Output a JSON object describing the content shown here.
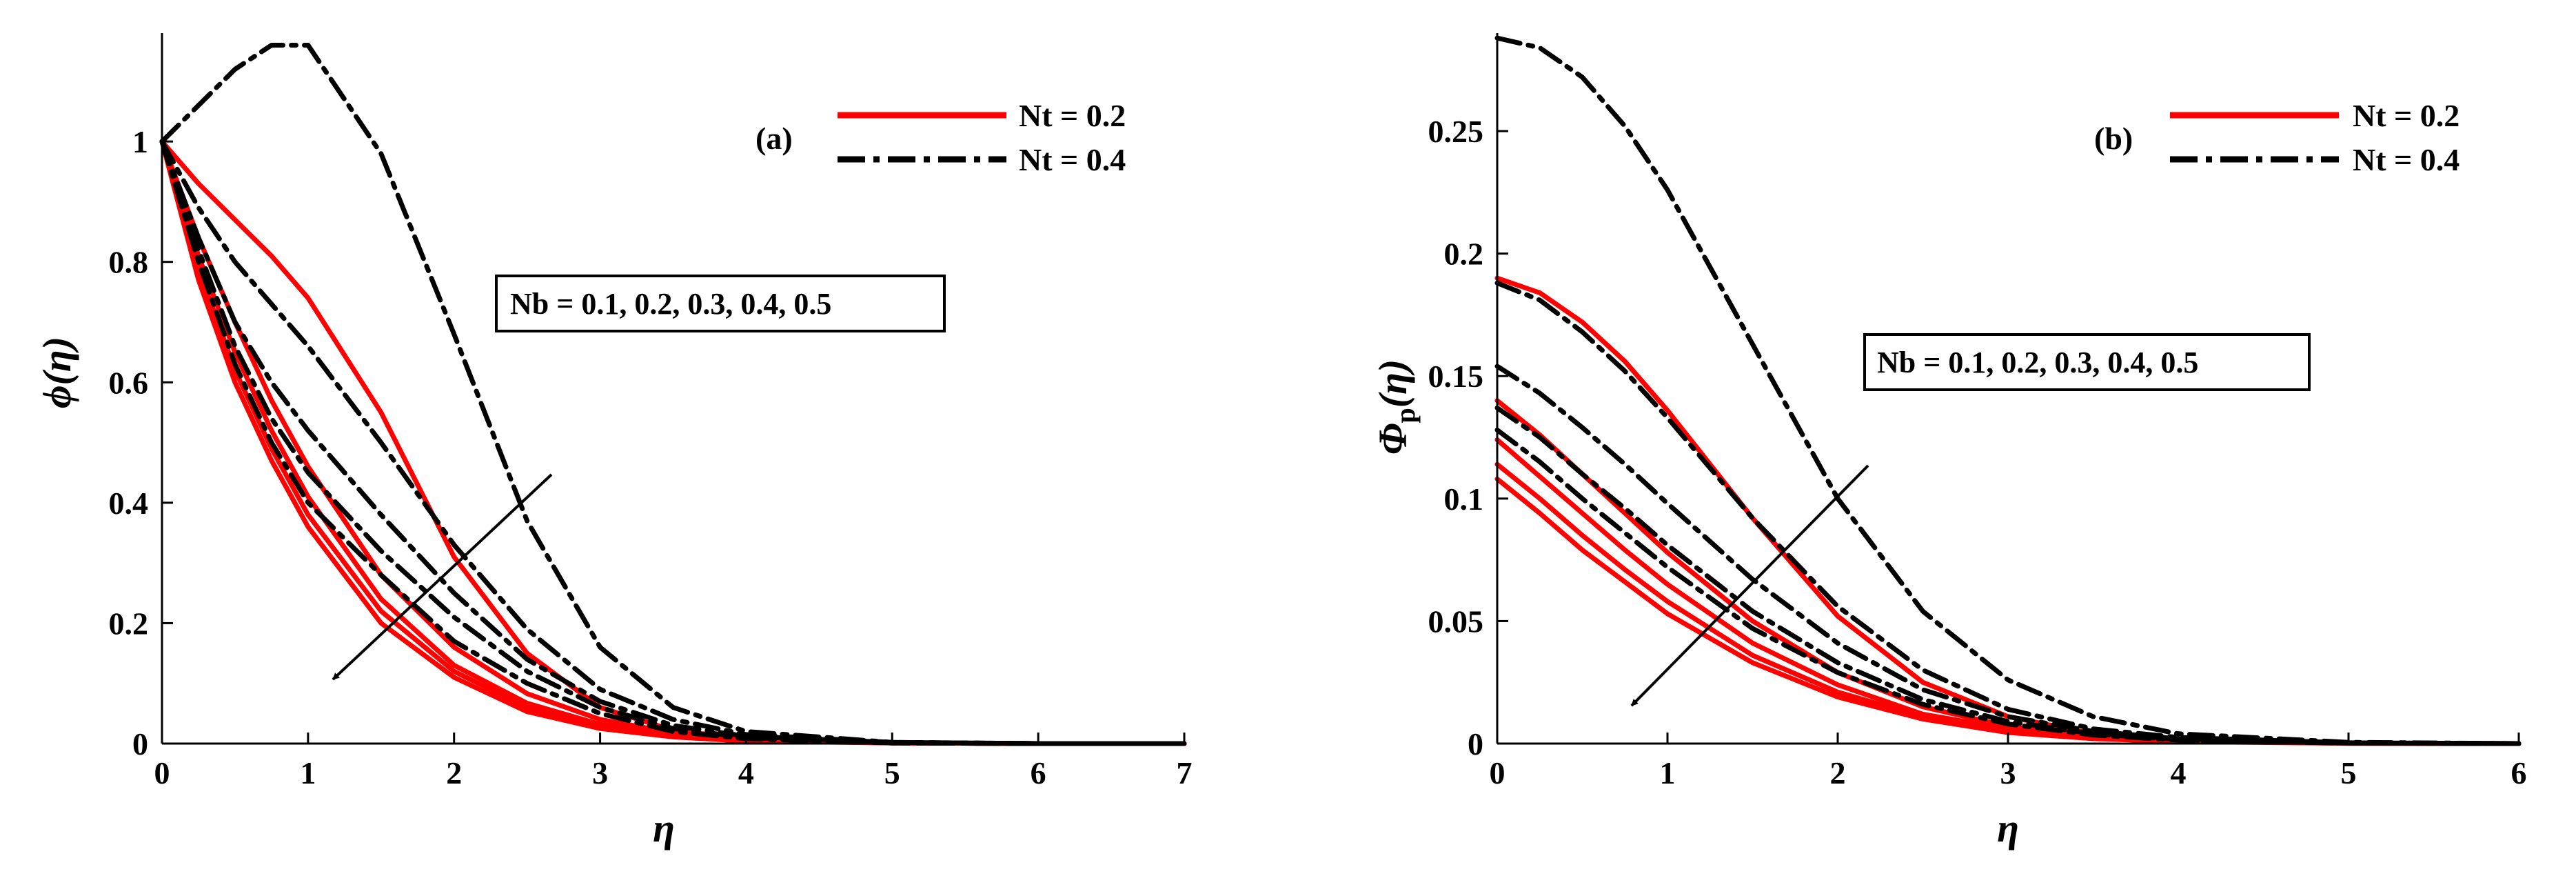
{
  "figure": {
    "background": "#ffffff"
  },
  "legend": {
    "entries": [
      {
        "label": "Nt = 0.2",
        "color": "#ff0000",
        "style": "solid"
      },
      {
        "label": "Nt = 0.4",
        "color": "#000000",
        "style": "dashdot"
      }
    ]
  },
  "chart_data": [
    {
      "type": "line",
      "panel_label": "(a)",
      "title": "",
      "xlabel": "η",
      "ylabel": "ϕ(η)",
      "xlim": [
        0,
        7
      ],
      "ylim": [
        0,
        1.18
      ],
      "xticks": [
        0,
        1,
        2,
        3,
        4,
        5,
        6,
        7
      ],
      "xtick_labels": [
        "0",
        "1",
        "2",
        "3",
        "4",
        "5",
        "6",
        "7"
      ],
      "yticks": [
        0,
        0.2,
        0.4,
        0.6,
        0.8,
        1
      ],
      "ytick_labels": [
        "0",
        "0.2",
        "0.4",
        "0.6",
        "0.8",
        "1"
      ],
      "grid": false,
      "legend_position": "top-right",
      "annotation": "Nb = 0.1, 0.2, 0.3, 0.4, 0.5",
      "arrow_note": "increasing Nb",
      "series": [
        {
          "name": "Nt = 0.2, Nb = 0.1",
          "group": "Nt = 0.2",
          "x": [
            0,
            0.25,
            0.5,
            0.75,
            1,
            1.5,
            2,
            2.5,
            3,
            3.5,
            4,
            5,
            6,
            7
          ],
          "values": [
            1,
            0.93,
            0.87,
            0.81,
            0.74,
            0.55,
            0.31,
            0.15,
            0.06,
            0.022,
            0.008,
            0.001,
            0,
            0
          ]
        },
        {
          "name": "Nt = 0.2, Nb = 0.2",
          "group": "Nt = 0.2",
          "x": [
            0,
            0.25,
            0.5,
            0.75,
            1,
            1.5,
            2,
            2.5,
            3,
            3.5,
            4,
            5,
            6,
            7
          ],
          "values": [
            1,
            0.84,
            0.7,
            0.57,
            0.46,
            0.28,
            0.16,
            0.083,
            0.04,
            0.018,
            0.007,
            0.001,
            0,
            0
          ]
        },
        {
          "name": "Nt = 0.2, Nb = 0.3",
          "group": "Nt = 0.2",
          "x": [
            0,
            0.25,
            0.5,
            0.75,
            1,
            1.5,
            2,
            2.5,
            3,
            3.5,
            4,
            5,
            6,
            7
          ],
          "values": [
            1,
            0.81,
            0.65,
            0.52,
            0.41,
            0.24,
            0.13,
            0.067,
            0.032,
            0.014,
            0.006,
            0.001,
            0,
            0
          ]
        },
        {
          "name": "Nt = 0.2, Nb = 0.4",
          "group": "Nt = 0.2",
          "x": [
            0,
            0.25,
            0.5,
            0.75,
            1,
            1.5,
            2,
            2.5,
            3,
            3.5,
            4,
            5,
            6,
            7
          ],
          "values": [
            1,
            0.79,
            0.62,
            0.49,
            0.38,
            0.22,
            0.12,
            0.06,
            0.028,
            0.012,
            0.005,
            0.001,
            0,
            0
          ]
        },
        {
          "name": "Nt = 0.2, Nb = 0.5",
          "group": "Nt = 0.2",
          "x": [
            0,
            0.25,
            0.5,
            0.75,
            1,
            1.5,
            2,
            2.5,
            3,
            3.5,
            4,
            5,
            6,
            7
          ],
          "values": [
            1,
            0.77,
            0.6,
            0.47,
            0.36,
            0.2,
            0.11,
            0.053,
            0.025,
            0.011,
            0.004,
            0.001,
            0,
            0
          ]
        },
        {
          "name": "Nt = 0.4, Nb = 0.1",
          "group": "Nt = 0.4",
          "x": [
            0,
            0.25,
            0.5,
            0.75,
            1,
            1.5,
            2,
            2.5,
            3,
            3.5,
            4,
            5,
            6,
            7
          ],
          "values": [
            1,
            1.06,
            1.12,
            1.16,
            1.16,
            0.98,
            0.68,
            0.37,
            0.16,
            0.06,
            0.02,
            0.002,
            0,
            0
          ]
        },
        {
          "name": "Nt = 0.4, Nb = 0.2",
          "group": "Nt = 0.4",
          "x": [
            0,
            0.25,
            0.5,
            0.75,
            1,
            1.5,
            2,
            2.5,
            3,
            3.5,
            4,
            5,
            6,
            7
          ],
          "values": [
            1,
            0.89,
            0.8,
            0.73,
            0.66,
            0.5,
            0.33,
            0.19,
            0.09,
            0.04,
            0.015,
            0.002,
            0,
            0
          ]
        },
        {
          "name": "Nt = 0.4, Nb = 0.3",
          "group": "Nt = 0.4",
          "x": [
            0,
            0.25,
            0.5,
            0.75,
            1,
            1.5,
            2,
            2.5,
            3,
            3.5,
            4,
            5,
            6,
            7
          ],
          "values": [
            1,
            0.84,
            0.7,
            0.6,
            0.52,
            0.38,
            0.25,
            0.14,
            0.07,
            0.03,
            0.012,
            0.002,
            0,
            0
          ]
        },
        {
          "name": "Nt = 0.4, Nb = 0.4",
          "group": "Nt = 0.4",
          "x": [
            0,
            0.25,
            0.5,
            0.75,
            1,
            1.5,
            2,
            2.5,
            3,
            3.5,
            4,
            5,
            6,
            7
          ],
          "values": [
            1,
            0.82,
            0.66,
            0.54,
            0.45,
            0.32,
            0.21,
            0.12,
            0.06,
            0.025,
            0.01,
            0.001,
            0,
            0
          ]
        },
        {
          "name": "Nt = 0.4, Nb = 0.5",
          "group": "Nt = 0.4",
          "x": [
            0,
            0.25,
            0.5,
            0.75,
            1,
            1.5,
            2,
            2.5,
            3,
            3.5,
            4,
            5,
            6,
            7
          ],
          "values": [
            1,
            0.8,
            0.63,
            0.5,
            0.4,
            0.28,
            0.17,
            0.1,
            0.05,
            0.02,
            0.008,
            0.001,
            0,
            0
          ]
        }
      ]
    },
    {
      "type": "line",
      "panel_label": "(b)",
      "title": "",
      "xlabel": "η",
      "ylabel": "Φp(η)",
      "xlim": [
        0,
        6
      ],
      "ylim": [
        0,
        0.29
      ],
      "xticks": [
        0,
        1,
        2,
        3,
        4,
        5,
        6
      ],
      "xtick_labels": [
        "0",
        "1",
        "2",
        "3",
        "4",
        "5",
        "6"
      ],
      "yticks": [
        0,
        0.05,
        0.1,
        0.15,
        0.2,
        0.25
      ],
      "ytick_labels": [
        "0",
        "0.05",
        "0.1",
        "0.15",
        "0.2",
        "0.25"
      ],
      "grid": false,
      "legend_position": "top-right",
      "annotation": "Nb = 0.1, 0.2, 0.3, 0.4, 0.5",
      "arrow_note": "increasing Nb",
      "series": [
        {
          "name": "Nt = 0.2, Nb = 0.1",
          "group": "Nt = 0.2",
          "x": [
            0,
            0.25,
            0.5,
            0.75,
            1,
            1.5,
            2,
            2.5,
            3,
            3.5,
            4,
            5,
            6
          ],
          "values": [
            0.19,
            0.184,
            0.172,
            0.156,
            0.136,
            0.092,
            0.052,
            0.025,
            0.011,
            0.004,
            0.0015,
            0.0002,
            0
          ]
        },
        {
          "name": "Nt = 0.2, Nb = 0.2",
          "group": "Nt = 0.2",
          "x": [
            0,
            0.25,
            0.5,
            0.75,
            1,
            1.5,
            2,
            2.5,
            3,
            3.5,
            4,
            5,
            6
          ],
          "values": [
            0.14,
            0.126,
            0.11,
            0.094,
            0.078,
            0.05,
            0.029,
            0.015,
            0.007,
            0.003,
            0.0012,
            0.0002,
            0
          ]
        },
        {
          "name": "Nt = 0.2, Nb = 0.3",
          "group": "Nt = 0.2",
          "x": [
            0,
            0.25,
            0.5,
            0.75,
            1,
            1.5,
            2,
            2.5,
            3,
            3.5,
            4,
            5,
            6
          ],
          "values": [
            0.124,
            0.109,
            0.094,
            0.079,
            0.065,
            0.041,
            0.024,
            0.012,
            0.006,
            0.0025,
            0.001,
            0.0001,
            0
          ]
        },
        {
          "name": "Nt = 0.2, Nb = 0.4",
          "group": "Nt = 0.2",
          "x": [
            0,
            0.25,
            0.5,
            0.75,
            1,
            1.5,
            2,
            2.5,
            3,
            3.5,
            4,
            5,
            6
          ],
          "values": [
            0.114,
            0.1,
            0.085,
            0.071,
            0.058,
            0.036,
            0.021,
            0.011,
            0.005,
            0.002,
            0.001,
            0.0001,
            0
          ]
        },
        {
          "name": "Nt = 0.2, Nb = 0.5",
          "group": "Nt = 0.2",
          "x": [
            0,
            0.25,
            0.5,
            0.75,
            1,
            1.5,
            2,
            2.5,
            3,
            3.5,
            4,
            5,
            6
          ],
          "values": [
            0.108,
            0.094,
            0.079,
            0.066,
            0.053,
            0.033,
            0.019,
            0.01,
            0.0045,
            0.002,
            0.0008,
            0.0001,
            0
          ]
        },
        {
          "name": "Nt = 0.4, Nb = 0.1",
          "group": "Nt = 0.4",
          "x": [
            0,
            0.25,
            0.5,
            0.75,
            1,
            1.5,
            2,
            2.5,
            3,
            3.5,
            4,
            5,
            6
          ],
          "values": [
            0.288,
            0.284,
            0.272,
            0.252,
            0.226,
            0.163,
            0.1,
            0.054,
            0.026,
            0.011,
            0.004,
            0.0005,
            0
          ]
        },
        {
          "name": "Nt = 0.4, Nb = 0.2",
          "group": "Nt = 0.4",
          "x": [
            0,
            0.25,
            0.5,
            0.75,
            1,
            1.5,
            2,
            2.5,
            3,
            3.5,
            4,
            5,
            6
          ],
          "values": [
            0.188,
            0.181,
            0.168,
            0.152,
            0.133,
            0.092,
            0.056,
            0.03,
            0.014,
            0.006,
            0.0025,
            0.0003,
            0
          ]
        },
        {
          "name": "Nt = 0.4, Nb = 0.3",
          "group": "Nt = 0.4",
          "x": [
            0,
            0.25,
            0.5,
            0.75,
            1,
            1.5,
            2,
            2.5,
            3,
            3.5,
            4,
            5,
            6
          ],
          "values": [
            0.154,
            0.143,
            0.129,
            0.114,
            0.098,
            0.067,
            0.041,
            0.022,
            0.011,
            0.005,
            0.002,
            0.0002,
            0
          ]
        },
        {
          "name": "Nt = 0.4, Nb = 0.4",
          "group": "Nt = 0.4",
          "x": [
            0,
            0.25,
            0.5,
            0.75,
            1,
            1.5,
            2,
            2.5,
            3,
            3.5,
            4,
            5,
            6
          ],
          "values": [
            0.137,
            0.125,
            0.11,
            0.096,
            0.081,
            0.054,
            0.033,
            0.018,
            0.009,
            0.004,
            0.0016,
            0.0002,
            0
          ]
        },
        {
          "name": "Nt = 0.4, Nb = 0.5",
          "group": "Nt = 0.4",
          "x": [
            0,
            0.25,
            0.5,
            0.75,
            1,
            1.5,
            2,
            2.5,
            3,
            3.5,
            4,
            5,
            6
          ],
          "values": [
            0.128,
            0.115,
            0.1,
            0.086,
            0.072,
            0.047,
            0.029,
            0.016,
            0.008,
            0.0035,
            0.0014,
            0.0002,
            0
          ]
        }
      ]
    }
  ]
}
